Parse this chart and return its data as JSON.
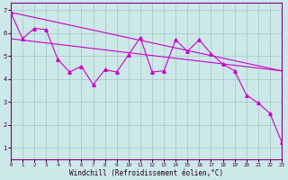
{
  "xlabel": "Windchill (Refroidissement éolien,°C)",
  "background_color": "#cce8e8",
  "line_color": "#cc00cc",
  "grid_color": "#aacccc",
  "xmin": 0,
  "xmax": 23,
  "ymin": 0.5,
  "ymax": 7.3,
  "yticks": [
    1,
    2,
    3,
    4,
    5,
    6,
    7
  ],
  "xticks": [
    0,
    1,
    2,
    3,
    4,
    5,
    6,
    7,
    8,
    9,
    10,
    11,
    12,
    13,
    14,
    15,
    16,
    17,
    18,
    19,
    20,
    21,
    22,
    23
  ],
  "zigzag_x": [
    0,
    1,
    2,
    3,
    4,
    5,
    6,
    7,
    8,
    9,
    10,
    11,
    12,
    13,
    14,
    15,
    16,
    17,
    18,
    19,
    20,
    21,
    22,
    23
  ],
  "zigzag_y": [
    6.9,
    5.75,
    6.2,
    6.15,
    4.85,
    4.3,
    4.55,
    3.75,
    4.4,
    4.3,
    5.05,
    5.8,
    4.3,
    4.35,
    5.7,
    5.2,
    5.7,
    5.1,
    4.65,
    4.35,
    3.3,
    2.95,
    2.5,
    1.25
  ],
  "upper_line_x": [
    0,
    23
  ],
  "upper_line_y": [
    6.9,
    4.35
  ],
  "lower_line_x": [
    0,
    23
  ],
  "lower_line_y": [
    5.75,
    4.35
  ],
  "spine_color": "#880088",
  "tick_color": "#440044",
  "xlabel_color": "#220022"
}
